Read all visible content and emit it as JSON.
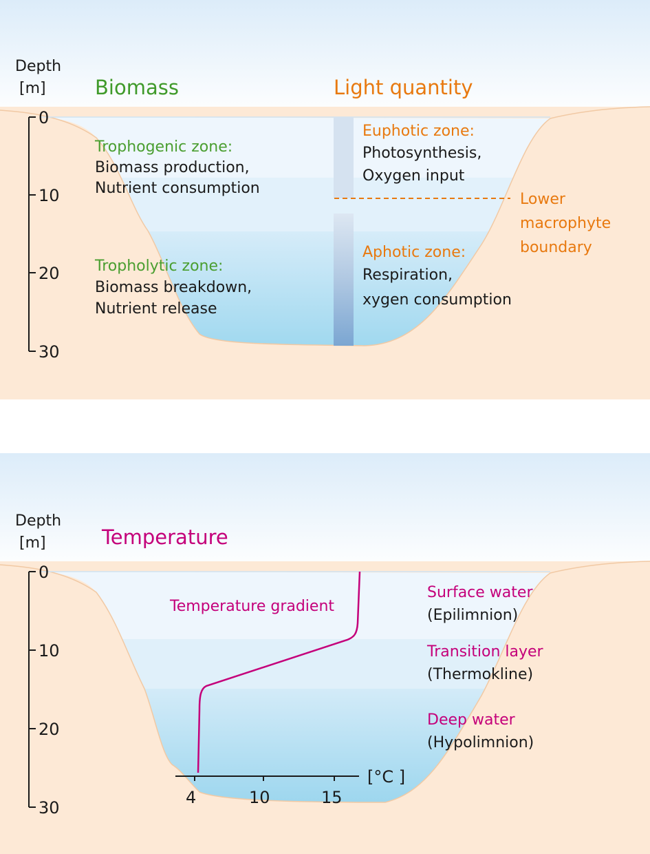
{
  "colors": {
    "ground": "#fde9d6",
    "ground_edge": "#f2c6a0",
    "water_top": "#eef6fd",
    "water_mid": "#dbeefa",
    "water_deep": "#a9dcf0",
    "green": "#4a9e30",
    "orange": "#e8790f",
    "magenta": "#c4007a",
    "light_column": "#9ab7d8"
  },
  "panel1": {
    "axis": {
      "title_line1": "Depth",
      "title_line2": "[m]",
      "ticks": [
        "0",
        "10",
        "20",
        "30"
      ]
    },
    "biomass": {
      "heading": "Biomass",
      "trophogenic": {
        "title": "Trophogenic zone:",
        "line1": "Biomass production,",
        "line2": "Nutrient consumption"
      },
      "tropholytic": {
        "title": "Tropholytic zone:",
        "line1": "Biomass breakdown,",
        "line2": "Nutrient release"
      }
    },
    "light": {
      "heading": "Light quantity",
      "euphotic": {
        "title": "Euphotic zone:",
        "line1": "Photosynthesis,",
        "line2": "Oxygen input"
      },
      "aphotic": {
        "title": "Aphotic zone:",
        "line1": "Respiration,",
        "line2": "xygen consumption"
      },
      "boundary": {
        "line1": "Lower",
        "line2": "macrophyte",
        "line3": "boundary"
      }
    }
  },
  "panel2": {
    "axis": {
      "title_line1": "Depth",
      "title_line2": "[m]",
      "ticks": [
        "0",
        "10",
        "20",
        "30"
      ]
    },
    "heading": "Temperature",
    "gradient_label": "Temperature gradient",
    "surface": {
      "title": "Surface water",
      "sub": "(Epilimnion)"
    },
    "transition": {
      "title": "Transition layer",
      "sub": "(Thermokline)"
    },
    "deep": {
      "title": "Deep water",
      "sub": "(Hypolimnion)"
    },
    "temp_axis": {
      "unit": "[°C ]",
      "ticks": [
        "4",
        "10",
        "15"
      ]
    }
  }
}
